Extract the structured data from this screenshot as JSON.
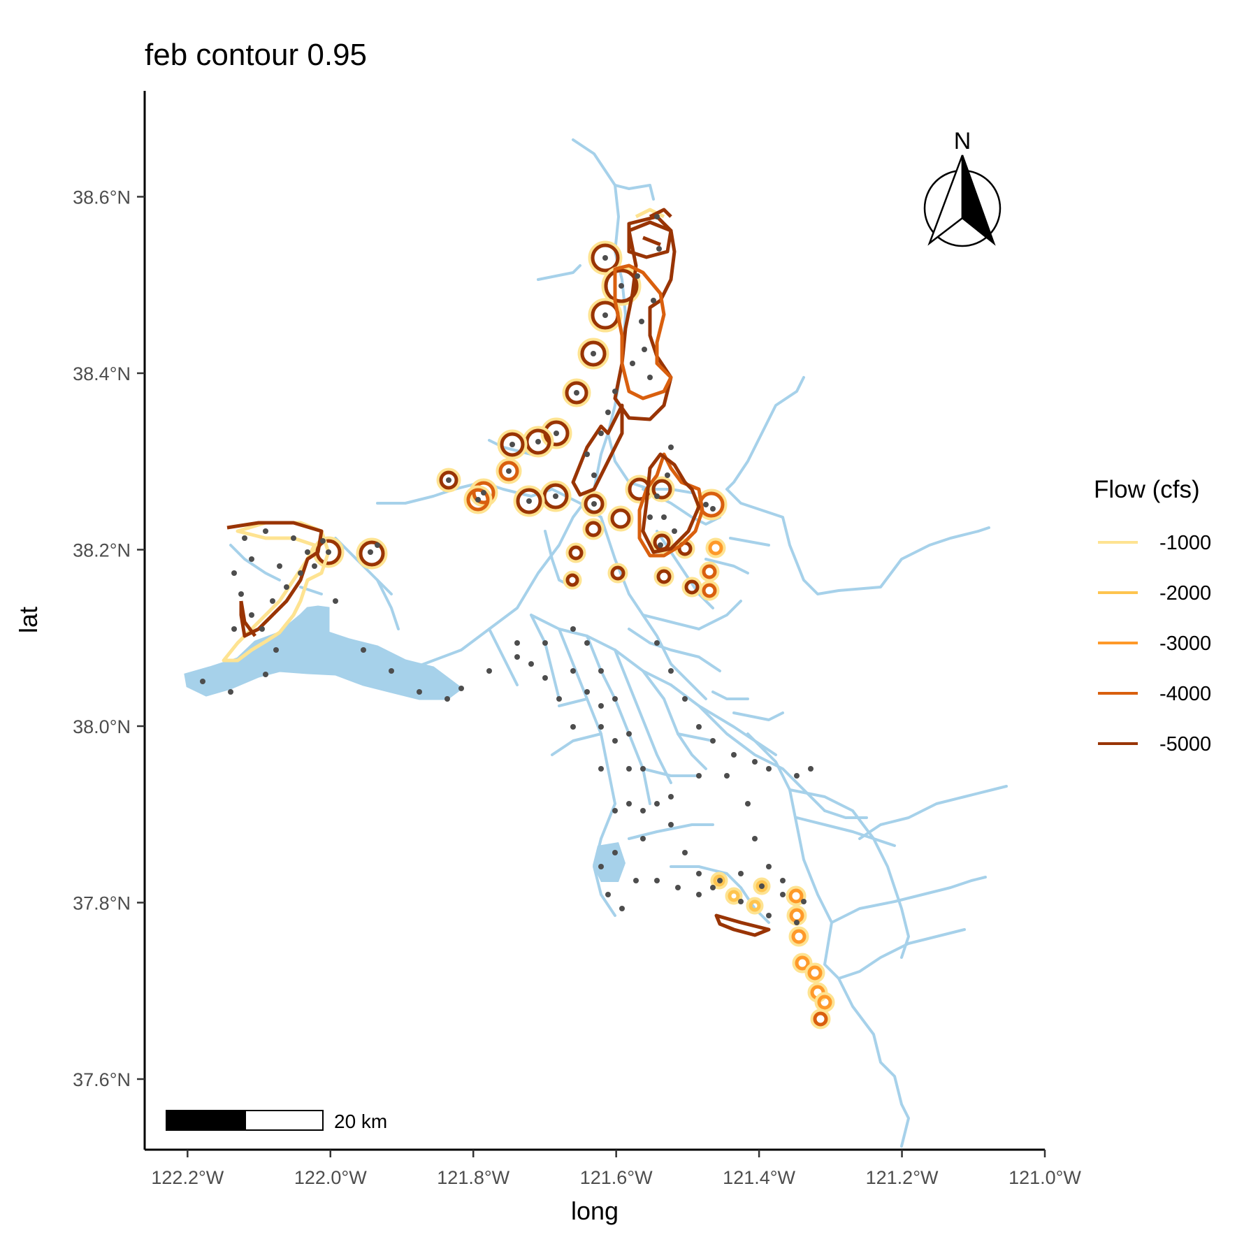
{
  "chart_data": {
    "type": "map",
    "title": "feb contour 0.95",
    "xlabel": "long",
    "ylabel": "lat",
    "x_ticks": [
      {
        "value": -122.2,
        "label": "122.2°W"
      },
      {
        "value": -122.0,
        "label": "122.0°W"
      },
      {
        "value": -121.8,
        "label": "121.8°W"
      },
      {
        "value": -121.6,
        "label": "121.6°W"
      },
      {
        "value": -121.4,
        "label": "121.4°W"
      },
      {
        "value": -121.2,
        "label": "121.2°W"
      },
      {
        "value": -121.0,
        "label": "121.0°W"
      }
    ],
    "y_ticks": [
      {
        "value": 37.6,
        "label": "37.6°N"
      },
      {
        "value": 37.8,
        "label": "37.8°N"
      },
      {
        "value": 38.0,
        "label": "38.0°N"
      },
      {
        "value": 38.2,
        "label": "38.2°N"
      },
      {
        "value": 38.4,
        "label": "38.4°N"
      },
      {
        "value": 38.6,
        "label": "38.6°N"
      }
    ],
    "xlim": [
      -122.26,
      -121.0
    ],
    "ylim": [
      37.52,
      38.72
    ],
    "legend": {
      "title": "Flow (cfs)",
      "position": "right",
      "entries": [
        {
          "label": "-1000",
          "color": "#fee391"
        },
        {
          "label": "-2000",
          "color": "#fec44f"
        },
        {
          "label": "-3000",
          "color": "#fe9929"
        },
        {
          "label": "-4000",
          "color": "#d95f0e"
        },
        {
          "label": "-5000",
          "color": "#993404"
        }
      ]
    },
    "water_color": "#a6d1ea",
    "node_color": "#4d4d4d",
    "north_arrow_label": "N",
    "scale_bar_label": "20 km"
  }
}
